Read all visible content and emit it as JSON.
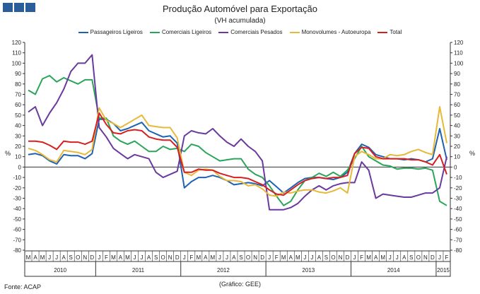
{
  "chart_data": {
    "type": "line",
    "title": "Produção Automóvel para Exportação",
    "subtitle": "(VH acumulada)",
    "ylabel": "%",
    "ylim": [
      -80,
      120
    ],
    "ytick_step": 10,
    "grid": false,
    "legend_position": "top",
    "x": [
      "2010-03",
      "2010-04",
      "2010-05",
      "2010-06",
      "2010-07",
      "2010-08",
      "2010-09",
      "2010-10",
      "2010-11",
      "2010-12",
      "2011-01",
      "2011-02",
      "2011-03",
      "2011-04",
      "2011-05",
      "2011-06",
      "2011-07",
      "2011-08",
      "2011-09",
      "2011-10",
      "2011-11",
      "2011-12",
      "2012-01",
      "2012-02",
      "2012-03",
      "2012-04",
      "2012-05",
      "2012-06",
      "2012-07",
      "2012-08",
      "2012-09",
      "2012-10",
      "2012-11",
      "2012-12",
      "2013-01",
      "2013-02",
      "2013-03",
      "2013-04",
      "2013-05",
      "2013-06",
      "2013-07",
      "2013-08",
      "2013-09",
      "2013-10",
      "2013-11",
      "2013-12",
      "2014-01",
      "2014-02",
      "2014-03",
      "2014-04",
      "2014-05",
      "2014-06",
      "2014-07",
      "2014-08",
      "2014-09",
      "2014-10",
      "2014-11",
      "2014-12",
      "2015-01",
      "2015-02"
    ],
    "month_labels": [
      "M",
      "A",
      "M",
      "J",
      "J",
      "A",
      "S",
      "O",
      "N",
      "D",
      "J",
      "F",
      "M",
      "A",
      "M",
      "J",
      "J",
      "A",
      "S",
      "O",
      "N",
      "D",
      "J",
      "F",
      "M",
      "A",
      "M",
      "J",
      "J",
      "A",
      "S",
      "O",
      "N",
      "D",
      "J",
      "F",
      "M",
      "A",
      "M",
      "J",
      "J",
      "A",
      "S",
      "O",
      "N",
      "D",
      "J",
      "F",
      "M",
      "A",
      "M",
      "J",
      "J",
      "A",
      "S",
      "O",
      "N",
      "D",
      "J",
      "F"
    ],
    "year_labels": [
      "2010",
      "2011",
      "2012",
      "2013",
      "2014",
      "2015"
    ],
    "series": [
      {
        "name": "Passageiros Ligeiros",
        "color": "#1f63b0",
        "values": [
          12,
          13,
          11,
          6,
          3,
          12,
          11,
          11,
          8,
          13,
          46,
          46,
          42,
          35,
          37,
          40,
          43,
          35,
          32,
          29,
          30,
          23,
          -20,
          -14,
          -10,
          -10,
          -8,
          -10,
          -13,
          -17,
          -16,
          -15,
          -16,
          -18,
          -13,
          -19,
          -25,
          -20,
          -15,
          -11,
          -10,
          -10,
          -11,
          -12,
          -10,
          -5,
          13,
          22,
          19,
          12,
          10,
          8,
          8,
          7,
          8,
          7,
          5,
          8,
          37,
          7
        ]
      },
      {
        "name": "Comerciais Ligeiros",
        "color": "#2aa55a",
        "values": [
          74,
          70,
          85,
          88,
          82,
          86,
          83,
          80,
          84,
          84,
          47,
          47,
          30,
          25,
          22,
          25,
          20,
          15,
          15,
          20,
          17,
          18,
          15,
          22,
          20,
          14,
          10,
          6,
          7,
          8,
          8,
          -2,
          -7,
          -10,
          -18,
          -28,
          -37,
          -33,
          -22,
          -13,
          -10,
          -6,
          -9,
          -5,
          -9,
          -3,
          8,
          20,
          10,
          6,
          2,
          1,
          -2,
          -1,
          -1,
          -2,
          -1,
          -3,
          -33,
          -37
        ]
      },
      {
        "name": "Comerciais Pesados",
        "color": "#6a3a9e",
        "values": [
          53,
          58,
          40,
          52,
          62,
          75,
          92,
          100,
          100,
          108,
          38,
          29,
          18,
          13,
          8,
          12,
          10,
          8,
          -5,
          -10,
          -7,
          -4,
          30,
          35,
          33,
          32,
          37,
          30,
          24,
          20,
          27,
          20,
          15,
          6,
          -41,
          -41,
          -41,
          -39,
          -35,
          -28,
          -22,
          -18,
          -22,
          -18,
          -16,
          -15,
          -15,
          5,
          -3,
          -30,
          -26,
          -27,
          -28,
          -29,
          -29,
          -27,
          -25,
          -25,
          -20,
          10
        ]
      },
      {
        "name": "Monovolumes - Autoeuropa",
        "color": "#e8b83a",
        "values": [
          18,
          16,
          12,
          7,
          5,
          16,
          15,
          14,
          12,
          17,
          57,
          45,
          42,
          38,
          42,
          46,
          50,
          40,
          39,
          38,
          38,
          28,
          -5,
          -8,
          -3,
          -2,
          -3,
          -9,
          -13,
          -13,
          -14,
          -18,
          -17,
          -21,
          -27,
          -28,
          -24,
          -25,
          -23,
          -22,
          -22,
          -24,
          -25,
          -23,
          -20,
          -25,
          10,
          15,
          12,
          8,
          8,
          12,
          11,
          12,
          15,
          17,
          14,
          12,
          58,
          23
        ]
      },
      {
        "name": "Total",
        "color": "#d62020",
        "values": [
          25,
          25,
          24,
          21,
          17,
          25,
          24,
          24,
          22,
          25,
          52,
          41,
          33,
          32,
          35,
          36,
          35,
          29,
          27,
          26,
          26,
          19,
          -5,
          -5,
          -2,
          -3,
          -3,
          -6,
          -8,
          -10,
          -10,
          -11,
          -14,
          -17,
          -22,
          -26,
          -27,
          -22,
          -17,
          -13,
          -11,
          -10,
          -11,
          -10,
          -10,
          -8,
          13,
          19,
          18,
          10,
          8,
          8,
          8,
          8,
          7,
          7,
          5,
          2,
          12,
          -7
        ]
      }
    ]
  },
  "footer": {
    "source": "Fonte: ACAP",
    "credit": "(Gráfico: GEE)"
  }
}
